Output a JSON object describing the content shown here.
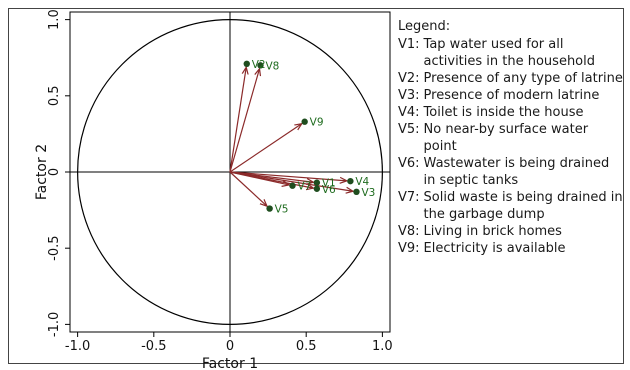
{
  "chart_data": {
    "type": "scatter",
    "subtype": "factor-loading-vector-plot",
    "title": "",
    "xlabel": "Factor 1",
    "ylabel": "Factor 2",
    "xlim": [
      -1.05,
      1.05
    ],
    "ylim": [
      -1.05,
      1.05
    ],
    "x_ticks": [
      -1.0,
      -0.5,
      0,
      0.5,
      1.0
    ],
    "x_tick_labels": [
      "-1.0",
      "-0.5",
      "0",
      "0.5",
      "1.0"
    ],
    "y_ticks": [
      -1.0,
      -0.5,
      0,
      0.5,
      1.0
    ],
    "y_tick_labels": [
      "-1.0",
      "-0.5",
      "0",
      "0.5",
      "1.0"
    ],
    "grid": false,
    "unit_circle": true,
    "zero_lines": true,
    "legend_position": "right",
    "points": [
      {
        "label": "V1",
        "x": 0.57,
        "y": -0.07
      },
      {
        "label": "V2",
        "x": 0.11,
        "y": 0.71
      },
      {
        "label": "V3",
        "x": 0.83,
        "y": -0.13
      },
      {
        "label": "V4",
        "x": 0.79,
        "y": -0.06
      },
      {
        "label": "V5",
        "x": 0.26,
        "y": -0.24
      },
      {
        "label": "V6",
        "x": 0.57,
        "y": -0.11
      },
      {
        "label": "V7",
        "x": 0.41,
        "y": -0.09
      },
      {
        "label": "V8",
        "x": 0.2,
        "y": 0.7
      },
      {
        "label": "V9",
        "x": 0.49,
        "y": 0.33
      }
    ],
    "colors": {
      "arrow": "#8b2a2a",
      "point": "#1f4d1f",
      "point_label": "#1e6b1e",
      "axis": "#000000"
    }
  },
  "legend": {
    "title": "Legend:",
    "items": [
      {
        "key": "V1:",
        "text": "Tap water used for all activities in the household"
      },
      {
        "key": "V2:",
        "text": "Presence of any type of latrine"
      },
      {
        "key": "V3:",
        "text": "Presence of modern latrine"
      },
      {
        "key": "V4:",
        "text": "Toilet is inside the house"
      },
      {
        "key": "V5:",
        "text": "No near-by surface water point"
      },
      {
        "key": "V6:",
        "text": "Wastewater is being drained in septic tanks"
      },
      {
        "key": "V7:",
        "text": "Solid waste is being drained in the garbage dump"
      },
      {
        "key": "V8:",
        "text": "Living in brick homes"
      },
      {
        "key": "V9:",
        "text": "Electricity is available"
      }
    ]
  }
}
